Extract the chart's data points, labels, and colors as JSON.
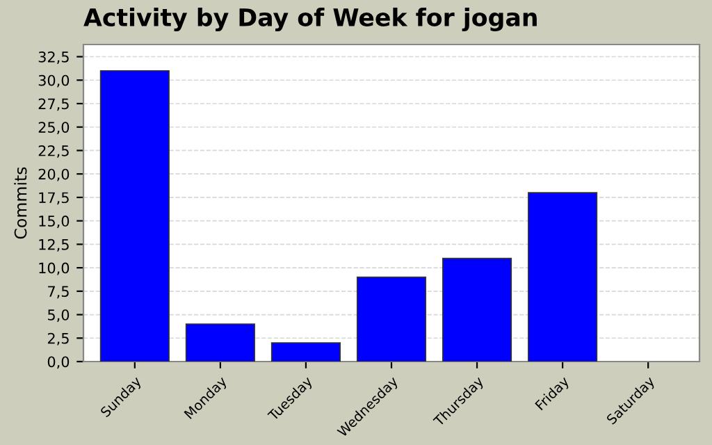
{
  "chart_data": {
    "type": "bar",
    "title": "Activity by Day of Week for jogan",
    "ylabel": "Commits",
    "categories": [
      "Sunday",
      "Monday",
      "Tuesday",
      "Wednesday",
      "Thursday",
      "Friday",
      "Saturday"
    ],
    "values": [
      31,
      4,
      2,
      9,
      11,
      18,
      0
    ],
    "color": "#0000ff",
    "ylim": [
      0,
      33.8
    ],
    "yticks": [
      {
        "value": 0,
        "label": "0,0"
      },
      {
        "value": 2.5,
        "label": "2,5"
      },
      {
        "value": 5,
        "label": "5,0"
      },
      {
        "value": 7.5,
        "label": "7,5"
      },
      {
        "value": 10,
        "label": "10,0"
      },
      {
        "value": 12.5,
        "label": "12,5"
      },
      {
        "value": 15,
        "label": "15,0"
      },
      {
        "value": 17.5,
        "label": "17,5"
      },
      {
        "value": 20,
        "label": "20,0"
      },
      {
        "value": 22.5,
        "label": "22,5"
      },
      {
        "value": 25,
        "label": "25,0"
      },
      {
        "value": 27.5,
        "label": "27,5"
      },
      {
        "value": 30,
        "label": "30,0"
      },
      {
        "value": 32.5,
        "label": "32,5"
      }
    ],
    "grid": "y"
  }
}
